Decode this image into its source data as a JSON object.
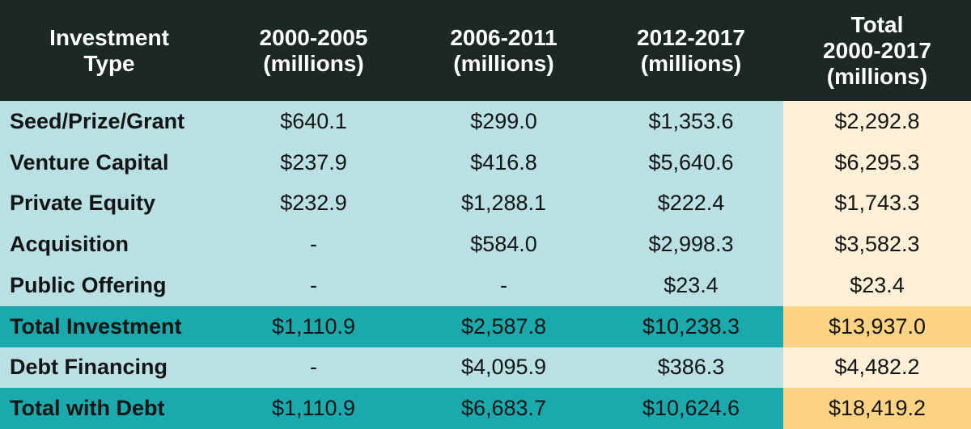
{
  "chart_data": {
    "type": "table",
    "columns": [
      [
        "Investment",
        "Type"
      ],
      [
        "2000-2005",
        "(millions)"
      ],
      [
        "2006-2011",
        "(millions)"
      ],
      [
        "2012-2017",
        "(millions)"
      ],
      [
        "Total",
        "2000-2017",
        "(millions)"
      ]
    ],
    "rows": [
      {
        "kind": "data",
        "cells": [
          "Seed/Prize/Grant",
          "$640.1",
          "$299.0",
          "$1,353.6",
          "$2,292.8"
        ]
      },
      {
        "kind": "data",
        "cells": [
          "Venture Capital",
          "$237.9",
          "$416.8",
          "$5,640.6",
          "$6,295.3"
        ]
      },
      {
        "kind": "data",
        "cells": [
          "Private Equity",
          "$232.9",
          "$1,288.1",
          "$222.4",
          "$1,743.3"
        ]
      },
      {
        "kind": "data",
        "cells": [
          "Acquisition",
          "-",
          "$584.0",
          "$2,998.3",
          "$3,582.3"
        ]
      },
      {
        "kind": "data",
        "cells": [
          "Public Offering",
          "-",
          "-",
          "$23.4",
          "$23.4"
        ]
      },
      {
        "kind": "sum",
        "cells": [
          "Total Investment",
          "$1,110.9",
          "$2,587.8",
          "$10,238.3",
          "$13,937.0"
        ]
      },
      {
        "kind": "data",
        "cells": [
          "Debt Financing",
          "-",
          "$4,095.9",
          "$386.3",
          "$4,482.2"
        ]
      },
      {
        "kind": "sum",
        "cells": [
          "Total with Debt",
          "$1,110.9",
          "$6,683.7",
          "$10,624.6",
          "$18,419.2"
        ]
      }
    ]
  },
  "colors": {
    "header_bg": "#1b2826",
    "row_bg": "#b9e1e4",
    "total_col_bg": "#fdf0d6",
    "sum_row_bg": "#1aa9ac",
    "sum_total_bg": "#fcd283"
  }
}
